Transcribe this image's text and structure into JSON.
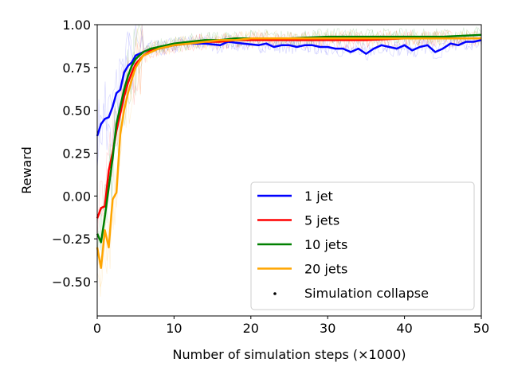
{
  "chart_data": {
    "type": "line",
    "title": "",
    "xlabel": "Number of simulation steps (×1000)",
    "ylabel": "Reward",
    "xlim": [
      0,
      50
    ],
    "ylim": [
      -0.7,
      1.0
    ],
    "xticks": [
      "0",
      "10",
      "20",
      "30",
      "40",
      "50"
    ],
    "yticks": [
      "−0.50",
      "−0.25",
      "0.00",
      "0.25",
      "0.50",
      "0.75",
      "1.00"
    ],
    "grid": false,
    "legend_position": "bottom-right",
    "series": [
      {
        "name": "1 jet",
        "color": "#0000ff",
        "x": [
          0,
          0.5,
          1,
          1.5,
          2,
          2.5,
          3,
          3.5,
          4,
          4.5,
          5,
          6,
          7,
          8,
          9,
          10,
          12,
          14,
          16,
          17,
          19,
          21,
          22,
          23,
          24,
          25,
          26,
          27,
          28,
          29,
          30,
          31,
          32,
          33,
          34,
          35,
          36,
          37,
          38,
          39,
          40,
          41,
          42,
          43,
          44,
          45,
          46,
          47,
          48,
          49,
          50
        ],
        "values": [
          0.35,
          0.42,
          0.45,
          0.46,
          0.52,
          0.6,
          0.62,
          0.72,
          0.76,
          0.78,
          0.82,
          0.84,
          0.86,
          0.86,
          0.87,
          0.88,
          0.89,
          0.89,
          0.88,
          0.9,
          0.89,
          0.88,
          0.89,
          0.87,
          0.88,
          0.88,
          0.87,
          0.88,
          0.88,
          0.87,
          0.87,
          0.86,
          0.86,
          0.84,
          0.86,
          0.83,
          0.86,
          0.88,
          0.87,
          0.86,
          0.88,
          0.85,
          0.87,
          0.88,
          0.84,
          0.86,
          0.89,
          0.88,
          0.9,
          0.9,
          0.91
        ]
      },
      {
        "name": "5 jets",
        "color": "#ff0000",
        "x": [
          0,
          0.5,
          1,
          1.5,
          2,
          2.5,
          3,
          3.5,
          4,
          4.5,
          5,
          6,
          7,
          8,
          9,
          10,
          12,
          14,
          16,
          18,
          20,
          25,
          30,
          35,
          40,
          45,
          50
        ],
        "values": [
          -0.13,
          -0.07,
          -0.06,
          0.15,
          0.25,
          0.38,
          0.48,
          0.58,
          0.66,
          0.72,
          0.77,
          0.82,
          0.85,
          0.86,
          0.87,
          0.88,
          0.89,
          0.9,
          0.9,
          0.91,
          0.91,
          0.91,
          0.91,
          0.91,
          0.92,
          0.92,
          0.92
        ]
      },
      {
        "name": "10 jets",
        "color": "#008000",
        "x": [
          0,
          0.5,
          1,
          1.5,
          2,
          2.5,
          3,
          3.5,
          4,
          4.5,
          5,
          6,
          7,
          8,
          9,
          10,
          12,
          14,
          16,
          18,
          20,
          25,
          30,
          35,
          40,
          45,
          50
        ],
        "values": [
          -0.22,
          -0.27,
          -0.12,
          0.05,
          0.22,
          0.42,
          0.52,
          0.62,
          0.7,
          0.76,
          0.8,
          0.84,
          0.86,
          0.87,
          0.88,
          0.89,
          0.9,
          0.91,
          0.91,
          0.92,
          0.92,
          0.92,
          0.93,
          0.93,
          0.93,
          0.93,
          0.94
        ]
      },
      {
        "name": "20 jets",
        "color": "#ffa500",
        "x": [
          0,
          0.5,
          1,
          1.5,
          2,
          2.5,
          3,
          3.5,
          4,
          4.5,
          5,
          6,
          7,
          8,
          9,
          10,
          12,
          14,
          16,
          18,
          20,
          25,
          30,
          35,
          40,
          45,
          50
        ],
        "values": [
          -0.3,
          -0.42,
          -0.2,
          -0.3,
          -0.02,
          0.02,
          0.36,
          0.5,
          0.6,
          0.68,
          0.75,
          0.82,
          0.84,
          0.86,
          0.87,
          0.88,
          0.89,
          0.9,
          0.91,
          0.91,
          0.92,
          0.92,
          0.92,
          0.92,
          0.92,
          0.92,
          0.92
        ]
      },
      {
        "name": "Simulation collapse",
        "color": "#000000",
        "marker": "point",
        "x": [],
        "values": []
      }
    ]
  }
}
